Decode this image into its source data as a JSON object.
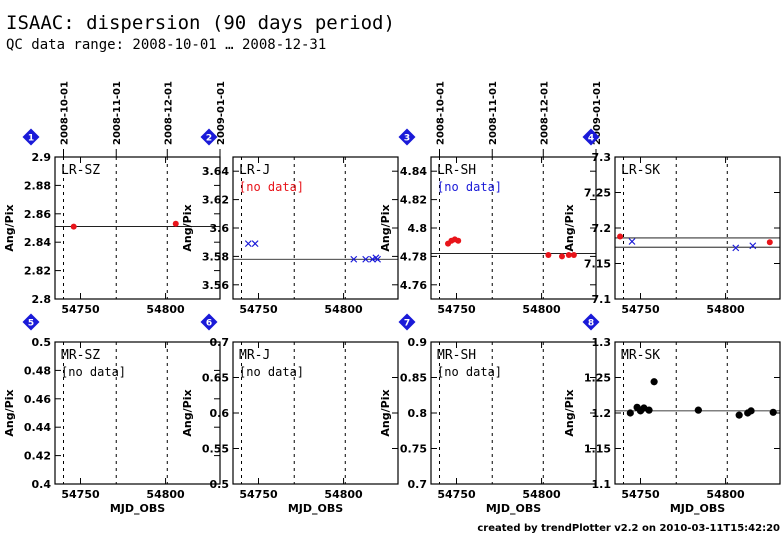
{
  "title": "ISAAC: dispersion (90 days period)",
  "subtitle": "QC data range: 2008-10-01 … 2008-12-31",
  "footer": "created by trendPlotter v2.2 on 2010-03-11T15:42:20",
  "colors": {
    "red": "#e8141a",
    "blue": "#1a1ad8",
    "black": "#000000",
    "badge": "#1a1ad8"
  },
  "chart_data": [
    {
      "type": "scatter",
      "badge": "1",
      "label": "LR-SZ",
      "nodata": "",
      "ylabel": "Ang/Pix",
      "xlabel": "",
      "ylim": [
        2.8,
        2.9
      ],
      "yticks": [
        "2.8",
        "2.82",
        "2.84",
        "2.86",
        "2.88",
        "2.9"
      ],
      "xticks": [
        "54750",
        "54800"
      ],
      "date_ticks": [
        "2008-10-01",
        "2008-11-01",
        "2008-12-01",
        "2009-01-01"
      ],
      "ref_lines": [
        2.851
      ],
      "series": [
        {
          "marker": "dot",
          "color": "red",
          "points": [
            [
              54746,
              2.851
            ],
            [
              54806,
              2.853
            ]
          ]
        }
      ]
    },
    {
      "type": "scatter",
      "badge": "2",
      "label": "LR-J",
      "nodata": "[no data]",
      "nodata_color": "red",
      "ylabel": "Ang/Pix",
      "xlabel": "",
      "ylim": [
        3.55,
        3.65
      ],
      "yticks": [
        "3.56",
        "3.58",
        "3.6",
        "3.62",
        "3.64"
      ],
      "xticks": [
        "54750",
        "54800"
      ],
      "date_ticks": [],
      "ref_lines": [
        3.578
      ],
      "series": [
        {
          "marker": "x",
          "color": "blue",
          "points": [
            [
              54744,
              3.589
            ],
            [
              54748,
              3.589
            ],
            [
              54806,
              3.578
            ],
            [
              54813,
              3.578
            ],
            [
              54817,
              3.578
            ],
            [
              54819,
              3.579
            ],
            [
              54820,
              3.578
            ]
          ]
        }
      ]
    },
    {
      "type": "scatter",
      "badge": "3",
      "label": "LR-SH",
      "nodata": "[no data]",
      "nodata_color": "blue",
      "ylabel": "Ang/Pix",
      "xlabel": "",
      "ylim": [
        4.75,
        4.85
      ],
      "yticks": [
        "4.76",
        "4.78",
        "4.8",
        "4.82",
        "4.84"
      ],
      "xticks": [
        "54750",
        "54800"
      ],
      "date_ticks": [
        "2008-10-01",
        "2008-11-01",
        "2008-12-01",
        "2009-01-01"
      ],
      "ref_lines": [
        4.782
      ],
      "series": [
        {
          "marker": "dot",
          "color": "red",
          "points": [
            [
              54745,
              4.789
            ],
            [
              54747,
              4.791
            ],
            [
              54749,
              4.792
            ],
            [
              54751,
              4.791
            ],
            [
              54804,
              4.781
            ],
            [
              54812,
              4.78
            ],
            [
              54816,
              4.781
            ],
            [
              54819,
              4.781
            ]
          ]
        }
      ]
    },
    {
      "type": "scatter",
      "badge": "4",
      "label": "LR-SK",
      "nodata": "",
      "ylabel": "Ang/Pix",
      "xlabel": "",
      "ylim": [
        7.1,
        7.3
      ],
      "yticks": [
        "7.1",
        "7.15",
        "7.2",
        "7.25",
        "7.3"
      ],
      "xticks": [
        "54750",
        "54800"
      ],
      "date_ticks": [],
      "ref_lines": [
        7.186,
        7.173
      ],
      "series": [
        {
          "marker": "dot",
          "color": "red",
          "points": [
            [
              54738,
              7.188
            ],
            [
              54826,
              7.18
            ]
          ]
        },
        {
          "marker": "x",
          "color": "blue",
          "points": [
            [
              54745,
              7.181
            ],
            [
              54806,
              7.172
            ],
            [
              54816,
              7.175
            ]
          ]
        }
      ]
    },
    {
      "type": "scatter",
      "badge": "5",
      "label": "MR-SZ",
      "nodata": "[no data]",
      "nodata_color": "black",
      "ylabel": "Ang/Pix",
      "xlabel": "MJD_OBS",
      "ylim": [
        0.4,
        0.5
      ],
      "yticks": [
        "0.4",
        "0.42",
        "0.44",
        "0.46",
        "0.48",
        "0.5"
      ],
      "xticks": [
        "54750",
        "54800"
      ],
      "date_ticks": [],
      "ref_lines": [],
      "series": []
    },
    {
      "type": "scatter",
      "badge": "6",
      "label": "MR-J",
      "nodata": "[no data]",
      "nodata_color": "black",
      "ylabel": "Ang/Pix",
      "xlabel": "MJD_OBS",
      "ylim": [
        0.5,
        0.7
      ],
      "yticks": [
        "0.5",
        "0.55",
        "0.6",
        "0.65",
        "0.7"
      ],
      "xticks": [
        "54750",
        "54800"
      ],
      "date_ticks": [],
      "ref_lines": [],
      "series": []
    },
    {
      "type": "scatter",
      "badge": "7",
      "label": "MR-SH",
      "nodata": "[no data]",
      "nodata_color": "black",
      "ylabel": "Ang/Pix",
      "xlabel": "MJD_OBS",
      "ylim": [
        0.7,
        0.9
      ],
      "yticks": [
        "0.7",
        "0.75",
        "0.8",
        "0.85",
        "0.9"
      ],
      "xticks": [
        "54750",
        "54800"
      ],
      "date_ticks": [],
      "ref_lines": [],
      "series": []
    },
    {
      "type": "scatter",
      "badge": "8",
      "label": "MR-SK",
      "nodata": "",
      "ylabel": "Ang/Pix",
      "xlabel": "MJD_OBS",
      "ylim": [
        1.1,
        1.3
      ],
      "yticks": [
        "1.1",
        "1.15",
        "1.2",
        "1.25",
        "1.3"
      ],
      "xticks": [
        "54750",
        "54800"
      ],
      "date_ticks": [],
      "ref_lines": [
        1.203
      ],
      "series": [
        {
          "marker": "dot",
          "color": "black",
          "points": [
            [
              54744,
              1.2
            ],
            [
              54748,
              1.208
            ],
            [
              54750,
              1.203
            ],
            [
              54752,
              1.207
            ],
            [
              54755,
              1.204
            ],
            [
              54758,
              1.244
            ],
            [
              54784,
              1.204
            ],
            [
              54808,
              1.197
            ],
            [
              54813,
              1.2
            ],
            [
              54815,
              1.203
            ],
            [
              54828,
              1.201
            ]
          ]
        }
      ]
    }
  ]
}
